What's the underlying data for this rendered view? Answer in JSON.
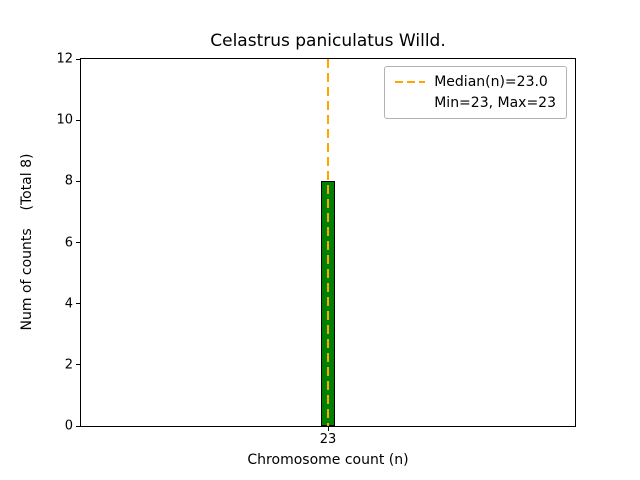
{
  "chart_data": {
    "type": "bar",
    "title": "Celastrus paniculatus Willd.",
    "xlabel": "Chromosome count (n)",
    "ylabel": "Num of counts    (Total 8)",
    "categories": [
      23
    ],
    "xtick_labels": [
      "23"
    ],
    "values": [
      8
    ],
    "total_counts": 8,
    "ylim": [
      0,
      12
    ],
    "yticks": [
      0,
      2,
      4,
      6,
      8,
      10,
      12
    ],
    "grid": false,
    "bar_color": "#008000",
    "bar_edge_color": "#000000",
    "median_line": {
      "x": 23,
      "value": 23.0,
      "color": "#ffa500",
      "style": "dashed"
    },
    "legend": {
      "position": "upper right",
      "entries": [
        {
          "label": "Median(n)=23.0",
          "marker": "dashed-orange-line"
        },
        {
          "label": "Min=23, Max=23",
          "marker": "none"
        }
      ]
    }
  }
}
